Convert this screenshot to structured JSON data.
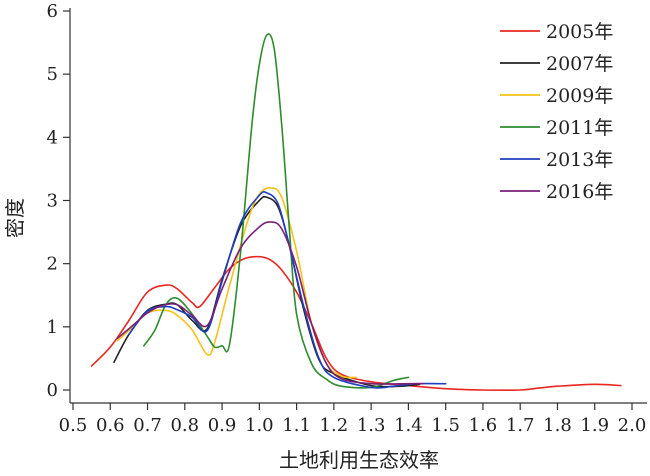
{
  "chart_data": {
    "type": "line",
    "title": "",
    "xlabel": "土地利用生态效率",
    "ylabel": "密度",
    "xlim": [
      0.5,
      2.0
    ],
    "ylim": [
      0,
      6
    ],
    "x_ticks": [
      "0.5",
      "0.6",
      "0.7",
      "0.8",
      "0.9",
      "1.0",
      "1.1",
      "1.2",
      "1.3",
      "1.4",
      "1.5",
      "1.6",
      "1.7",
      "1.8",
      "1.9",
      "2.0"
    ],
    "y_ticks": [
      "0",
      "1",
      "2",
      "3",
      "4",
      "5",
      "6"
    ],
    "grid": false,
    "legend_position": "top-right",
    "series": [
      {
        "name": "2005年",
        "color": "#e8271f",
        "points": [
          [
            0.55,
            0.38
          ],
          [
            0.6,
            0.68
          ],
          [
            0.65,
            1.1
          ],
          [
            0.7,
            1.55
          ],
          [
            0.75,
            1.66
          ],
          [
            0.78,
            1.6
          ],
          [
            0.82,
            1.38
          ],
          [
            0.84,
            1.32
          ],
          [
            0.88,
            1.62
          ],
          [
            0.92,
            1.92
          ],
          [
            0.96,
            2.08
          ],
          [
            1.0,
            2.11
          ],
          [
            1.03,
            2.06
          ],
          [
            1.06,
            1.9
          ],
          [
            1.1,
            1.55
          ],
          [
            1.14,
            1.05
          ],
          [
            1.18,
            0.5
          ],
          [
            1.22,
            0.25
          ],
          [
            1.3,
            0.13
          ],
          [
            1.4,
            0.07
          ],
          [
            1.5,
            0.02
          ],
          [
            1.6,
            0.0
          ],
          [
            1.7,
            0.0
          ],
          [
            1.75,
            0.03
          ],
          [
            1.8,
            0.06
          ],
          [
            1.9,
            0.09
          ],
          [
            1.97,
            0.07
          ]
        ]
      },
      {
        "name": "2007年",
        "color": "#222222",
        "points": [
          [
            0.61,
            0.44
          ],
          [
            0.65,
            0.88
          ],
          [
            0.7,
            1.26
          ],
          [
            0.75,
            1.36
          ],
          [
            0.78,
            1.35
          ],
          [
            0.82,
            1.1
          ],
          [
            0.86,
            0.97
          ],
          [
            0.9,
            1.75
          ],
          [
            0.95,
            2.6
          ],
          [
            1.0,
            3.0
          ],
          [
            1.02,
            3.05
          ],
          [
            1.05,
            2.9
          ],
          [
            1.08,
            2.3
          ],
          [
            1.12,
            1.25
          ],
          [
            1.16,
            0.48
          ],
          [
            1.2,
            0.26
          ],
          [
            1.3,
            0.07
          ],
          [
            1.38,
            0.06
          ],
          [
            1.43,
            0.09
          ]
        ]
      },
      {
        "name": "2009年",
        "color": "#f5c218",
        "points": [
          [
            0.62,
            0.78
          ],
          [
            0.66,
            1.0
          ],
          [
            0.7,
            1.22
          ],
          [
            0.75,
            1.26
          ],
          [
            0.78,
            1.18
          ],
          [
            0.82,
            0.95
          ],
          [
            0.86,
            0.56
          ],
          [
            0.88,
            0.75
          ],
          [
            0.92,
            1.65
          ],
          [
            0.97,
            2.7
          ],
          [
            1.0,
            3.1
          ],
          [
            1.03,
            3.2
          ],
          [
            1.06,
            3.05
          ],
          [
            1.1,
            2.2
          ],
          [
            1.14,
            1.05
          ],
          [
            1.18,
            0.42
          ],
          [
            1.22,
            0.22
          ],
          [
            1.26,
            0.2
          ]
        ]
      },
      {
        "name": "2011年",
        "color": "#2e8b2e",
        "points": [
          [
            0.69,
            0.7
          ],
          [
            0.72,
            0.95
          ],
          [
            0.75,
            1.36
          ],
          [
            0.78,
            1.45
          ],
          [
            0.82,
            1.2
          ],
          [
            0.86,
            0.85
          ],
          [
            0.88,
            0.68
          ],
          [
            0.9,
            0.7
          ],
          [
            0.92,
            0.72
          ],
          [
            0.95,
            2.2
          ],
          [
            0.98,
            4.2
          ],
          [
            1.0,
            5.15
          ],
          [
            1.02,
            5.62
          ],
          [
            1.04,
            5.4
          ],
          [
            1.06,
            4.2
          ],
          [
            1.08,
            2.6
          ],
          [
            1.1,
            1.2
          ],
          [
            1.14,
            0.42
          ],
          [
            1.18,
            0.17
          ],
          [
            1.22,
            0.06
          ],
          [
            1.3,
            0.04
          ],
          [
            1.36,
            0.15
          ],
          [
            1.4,
            0.2
          ]
        ]
      },
      {
        "name": "2013年",
        "color": "#1f3fbf",
        "points": [
          [
            0.65,
            0.88
          ],
          [
            0.7,
            1.25
          ],
          [
            0.75,
            1.32
          ],
          [
            0.78,
            1.27
          ],
          [
            0.82,
            1.15
          ],
          [
            0.86,
            0.94
          ],
          [
            0.9,
            1.72
          ],
          [
            0.95,
            2.65
          ],
          [
            1.0,
            3.08
          ],
          [
            1.02,
            3.12
          ],
          [
            1.05,
            2.95
          ],
          [
            1.08,
            2.3
          ],
          [
            1.12,
            1.3
          ],
          [
            1.16,
            0.5
          ],
          [
            1.2,
            0.2
          ],
          [
            1.3,
            0.04
          ],
          [
            1.36,
            0.06
          ],
          [
            1.42,
            0.1
          ],
          [
            1.5,
            0.1
          ]
        ]
      },
      {
        "name": "2016年",
        "color": "#7a1f7a",
        "points": [
          [
            0.62,
            0.82
          ],
          [
            0.66,
            1.02
          ],
          [
            0.7,
            1.22
          ],
          [
            0.74,
            1.34
          ],
          [
            0.78,
            1.35
          ],
          [
            0.82,
            1.18
          ],
          [
            0.86,
            1.02
          ],
          [
            0.9,
            1.6
          ],
          [
            0.95,
            2.25
          ],
          [
            1.0,
            2.58
          ],
          [
            1.03,
            2.66
          ],
          [
            1.06,
            2.55
          ],
          [
            1.1,
            1.95
          ],
          [
            1.14,
            1.05
          ],
          [
            1.18,
            0.42
          ],
          [
            1.22,
            0.18
          ],
          [
            1.3,
            0.1
          ],
          [
            1.4,
            0.1
          ],
          [
            1.44,
            0.1
          ]
        ]
      }
    ]
  }
}
